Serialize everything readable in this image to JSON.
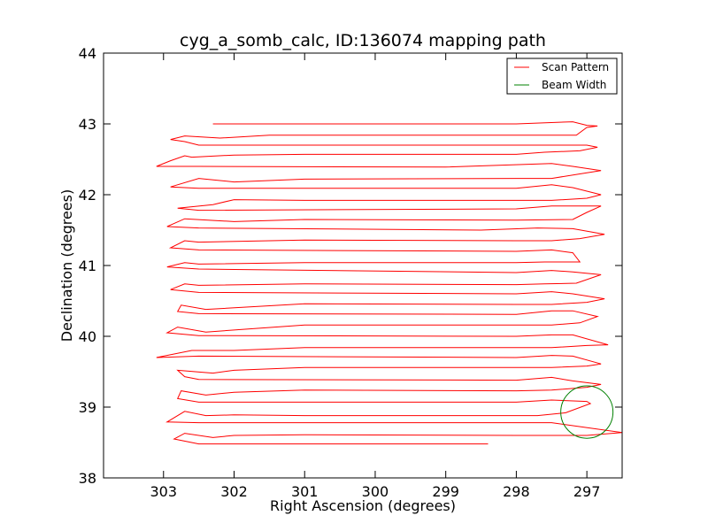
{
  "chart_data": {
    "type": "line",
    "title": "cyg_a_somb_calc, ID:136074 mapping path",
    "xlabel": "Right Ascension (degrees)",
    "ylabel": "Declination (degrees)",
    "xlim": [
      303.85,
      296.5
    ],
    "ylim": [
      38,
      44
    ],
    "xticks": [
      303,
      302,
      301,
      300,
      299,
      298,
      297
    ],
    "yticks": [
      38,
      39,
      40,
      41,
      42,
      43,
      44
    ],
    "xtick_labels": [
      "303",
      "302",
      "301",
      "300",
      "299",
      "298",
      "297"
    ],
    "ytick_labels": [
      "38",
      "39",
      "40",
      "41",
      "42",
      "43",
      "44"
    ],
    "grid": false,
    "legend_position": "top-right",
    "series": [
      {
        "name": "Scan Pattern",
        "color": "#ff0000",
        "points": [
          [
            302.3,
            43.0
          ],
          [
            298.5,
            43.0
          ],
          [
            298.0,
            43.0
          ],
          [
            297.2,
            43.03
          ],
          [
            297.0,
            42.98
          ],
          [
            296.85,
            42.97
          ],
          [
            297.0,
            42.95
          ],
          [
            297.15,
            42.84
          ],
          [
            297.5,
            42.84
          ],
          [
            301.5,
            42.84
          ],
          [
            302.2,
            42.8
          ],
          [
            302.7,
            42.83
          ],
          [
            302.9,
            42.78
          ],
          [
            302.7,
            42.75
          ],
          [
            302.5,
            42.7
          ],
          [
            297.0,
            42.7
          ],
          [
            296.85,
            42.67
          ],
          [
            297.1,
            42.62
          ],
          [
            297.6,
            42.6
          ],
          [
            298.0,
            42.57
          ],
          [
            301.0,
            42.57
          ],
          [
            302.0,
            42.56
          ],
          [
            302.6,
            42.53
          ],
          [
            302.7,
            42.55
          ],
          [
            302.9,
            42.48
          ],
          [
            303.1,
            42.4
          ],
          [
            302.5,
            42.4
          ],
          [
            299.0,
            42.39
          ],
          [
            297.5,
            42.44
          ],
          [
            297.2,
            42.4
          ],
          [
            296.8,
            42.34
          ],
          [
            297.0,
            42.31
          ],
          [
            297.5,
            42.23
          ],
          [
            298.0,
            42.23
          ],
          [
            301.0,
            42.22
          ],
          [
            302.0,
            42.18
          ],
          [
            302.5,
            42.23
          ],
          [
            302.9,
            42.11
          ],
          [
            302.5,
            42.09
          ],
          [
            298.0,
            42.09
          ],
          [
            297.5,
            42.14
          ],
          [
            297.2,
            42.1
          ],
          [
            296.8,
            42.0
          ],
          [
            297.0,
            41.95
          ],
          [
            297.5,
            41.92
          ],
          [
            298.0,
            41.92
          ],
          [
            301.0,
            41.92
          ],
          [
            302.0,
            41.93
          ],
          [
            302.3,
            41.86
          ],
          [
            302.8,
            41.81
          ],
          [
            302.5,
            41.78
          ],
          [
            298.0,
            41.8
          ],
          [
            297.5,
            41.84
          ],
          [
            297.2,
            41.84
          ],
          [
            296.8,
            41.84
          ],
          [
            297.0,
            41.75
          ],
          [
            297.2,
            41.65
          ],
          [
            298.0,
            41.64
          ],
          [
            301.0,
            41.65
          ],
          [
            302.0,
            41.62
          ],
          [
            302.7,
            41.66
          ],
          [
            302.95,
            41.55
          ],
          [
            302.5,
            41.53
          ],
          [
            298.5,
            41.5
          ],
          [
            297.7,
            41.53
          ],
          [
            297.2,
            41.52
          ],
          [
            296.75,
            41.44
          ],
          [
            297.1,
            41.38
          ],
          [
            297.5,
            41.35
          ],
          [
            298.0,
            41.35
          ],
          [
            301.0,
            41.36
          ],
          [
            302.5,
            41.33
          ],
          [
            302.7,
            41.35
          ],
          [
            302.9,
            41.25
          ],
          [
            302.5,
            41.22
          ],
          [
            298.0,
            41.2
          ],
          [
            297.5,
            41.22
          ],
          [
            297.2,
            41.18
          ],
          [
            297.1,
            41.05
          ],
          [
            297.6,
            41.05
          ],
          [
            298.0,
            41.04
          ],
          [
            301.0,
            41.04
          ],
          [
            302.5,
            41.02
          ],
          [
            302.7,
            41.04
          ],
          [
            302.95,
            40.98
          ],
          [
            302.5,
            40.95
          ],
          [
            298.0,
            40.9
          ],
          [
            297.5,
            40.93
          ],
          [
            297.2,
            40.91
          ],
          [
            296.8,
            40.87
          ],
          [
            297.15,
            40.75
          ],
          [
            297.6,
            40.74
          ],
          [
            298.0,
            40.73
          ],
          [
            301.0,
            40.74
          ],
          [
            302.5,
            40.72
          ],
          [
            302.7,
            40.74
          ],
          [
            302.9,
            40.66
          ],
          [
            302.5,
            40.62
          ],
          [
            298.0,
            40.6
          ],
          [
            297.5,
            40.63
          ],
          [
            297.2,
            40.6
          ],
          [
            296.75,
            40.53
          ],
          [
            297.0,
            40.48
          ],
          [
            297.5,
            40.45
          ],
          [
            298.0,
            40.45
          ],
          [
            301.0,
            40.46
          ],
          [
            302.4,
            40.38
          ],
          [
            302.75,
            40.44
          ],
          [
            302.8,
            40.35
          ],
          [
            302.5,
            40.32
          ],
          [
            298.0,
            40.31
          ],
          [
            297.5,
            40.36
          ],
          [
            297.2,
            40.36
          ],
          [
            296.85,
            40.28
          ],
          [
            297.1,
            40.19
          ],
          [
            297.5,
            40.16
          ],
          [
            298.0,
            40.16
          ],
          [
            301.0,
            40.16
          ],
          [
            302.4,
            40.06
          ],
          [
            302.8,
            40.13
          ],
          [
            302.95,
            40.05
          ],
          [
            302.5,
            40.01
          ],
          [
            298.0,
            40.0
          ],
          [
            297.5,
            40.02
          ],
          [
            297.2,
            40.02
          ],
          [
            296.7,
            39.88
          ],
          [
            297.0,
            39.87
          ],
          [
            297.5,
            39.84
          ],
          [
            298.0,
            39.84
          ],
          [
            301.0,
            39.84
          ],
          [
            302.0,
            39.8
          ],
          [
            302.6,
            39.8
          ],
          [
            303.1,
            39.7
          ],
          [
            302.5,
            39.72
          ],
          [
            298.0,
            39.7
          ],
          [
            297.5,
            39.73
          ],
          [
            297.2,
            39.72
          ],
          [
            296.8,
            39.61
          ],
          [
            297.0,
            39.58
          ],
          [
            297.5,
            39.56
          ],
          [
            298.0,
            39.56
          ],
          [
            301.0,
            39.56
          ],
          [
            302.0,
            39.52
          ],
          [
            302.3,
            39.48
          ],
          [
            302.8,
            39.52
          ],
          [
            302.7,
            39.43
          ],
          [
            302.5,
            39.39
          ],
          [
            298.0,
            39.38
          ],
          [
            297.5,
            39.42
          ],
          [
            297.2,
            39.37
          ],
          [
            296.8,
            39.32
          ],
          [
            297.0,
            39.28
          ],
          [
            297.5,
            39.24
          ],
          [
            298.0,
            39.23
          ],
          [
            301.0,
            39.24
          ],
          [
            302.0,
            39.21
          ],
          [
            302.4,
            39.17
          ],
          [
            302.75,
            39.23
          ],
          [
            302.8,
            39.12
          ],
          [
            302.5,
            39.07
          ],
          [
            298.0,
            39.07
          ],
          [
            297.5,
            39.1
          ],
          [
            297.0,
            39.08
          ],
          [
            296.95,
            39.05
          ],
          [
            297.3,
            38.92
          ],
          [
            297.7,
            38.88
          ],
          [
            298.0,
            38.88
          ],
          [
            301.0,
            38.88
          ],
          [
            302.0,
            38.89
          ],
          [
            302.4,
            38.88
          ],
          [
            302.7,
            38.94
          ],
          [
            302.95,
            38.79
          ],
          [
            302.5,
            38.78
          ],
          [
            298.0,
            38.78
          ],
          [
            297.5,
            38.78
          ],
          [
            296.5,
            38.64
          ],
          [
            297.0,
            38.6
          ],
          [
            298.0,
            38.6
          ],
          [
            301.0,
            38.61
          ],
          [
            302.0,
            38.6
          ],
          [
            302.3,
            38.57
          ],
          [
            302.7,
            38.63
          ],
          [
            302.85,
            38.55
          ],
          [
            302.5,
            38.48
          ],
          [
            301.0,
            38.48
          ],
          [
            298.4,
            38.48
          ]
        ]
      },
      {
        "name": "Beam Width",
        "color": "#008000",
        "circle": {
          "center": [
            297.0,
            38.93
          ],
          "radius": 0.37
        }
      }
    ]
  }
}
